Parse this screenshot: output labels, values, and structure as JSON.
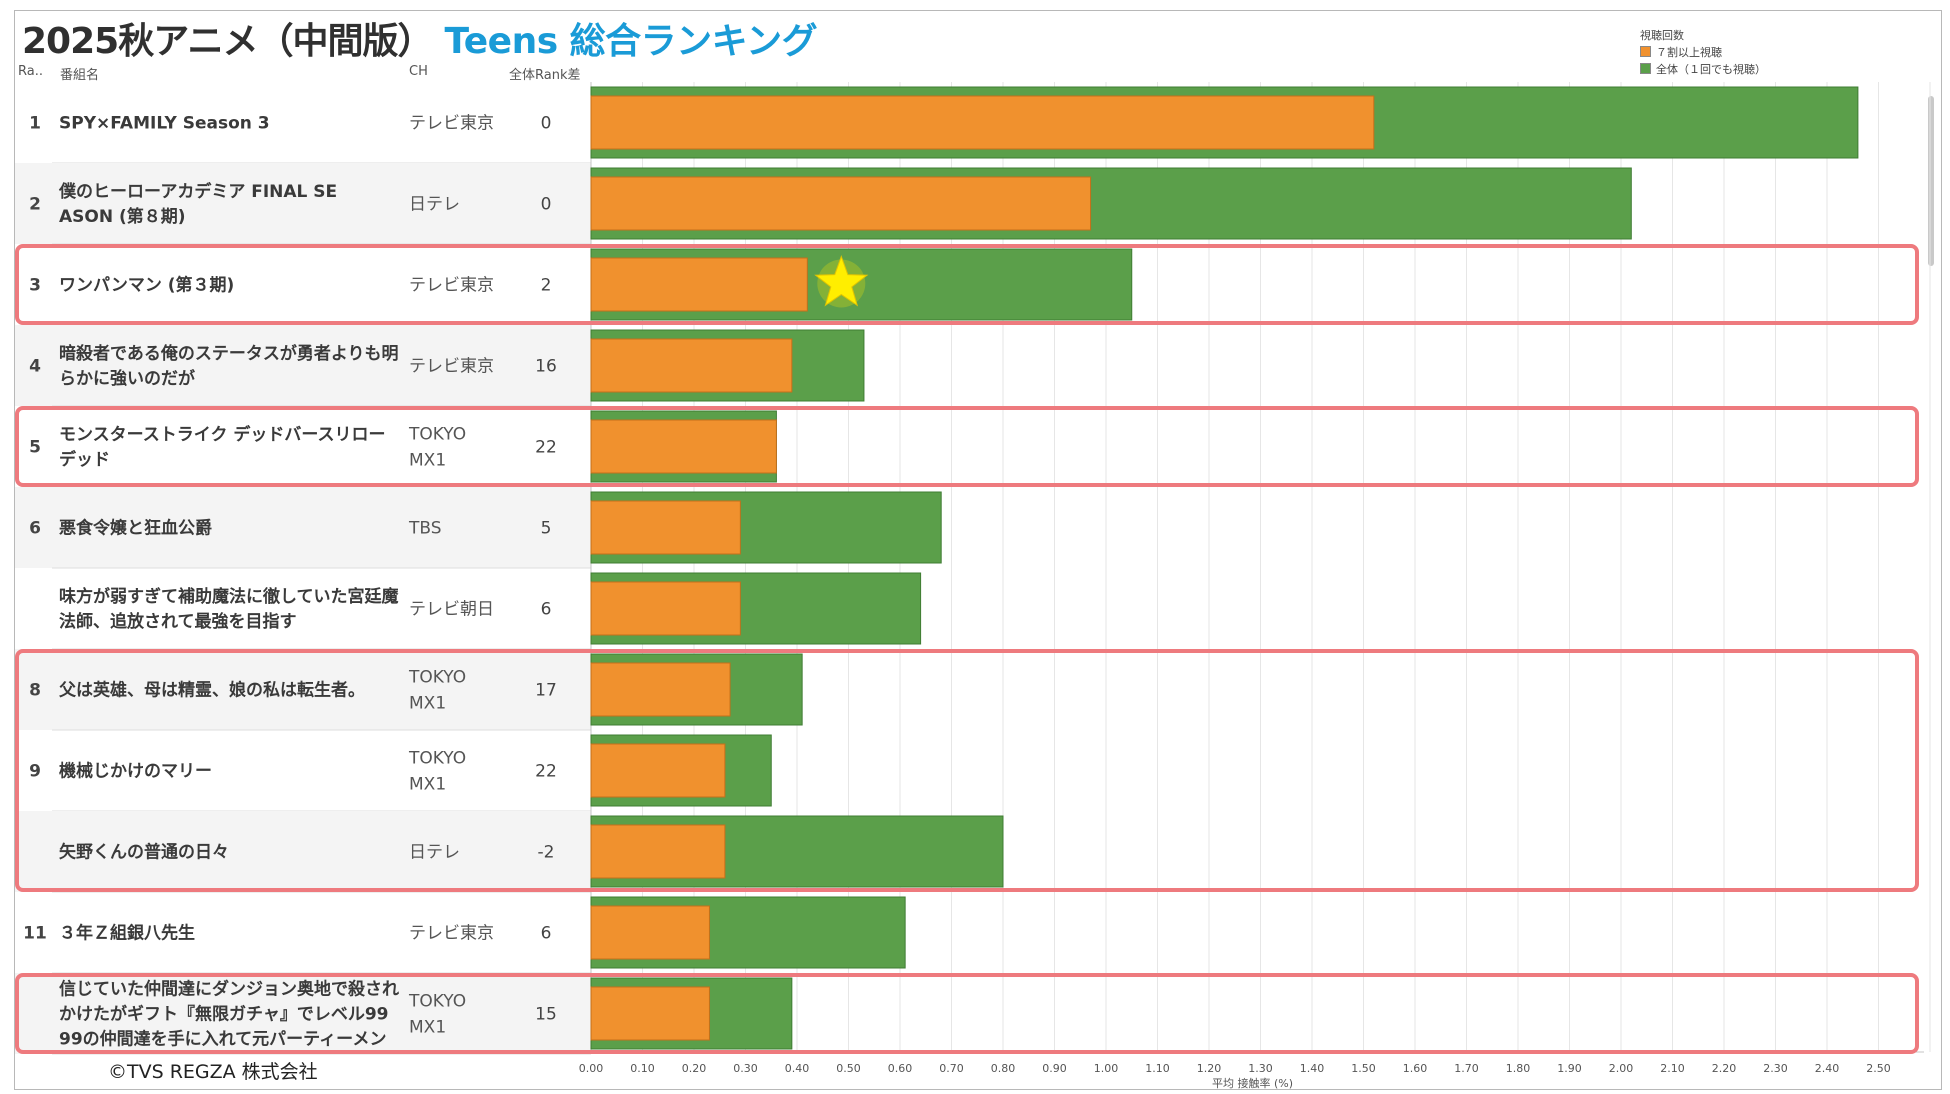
{
  "title": "2025秋アニメ（中間版）",
  "subtitle": "Teens 総合ランキング",
  "headers": {
    "rank": "Ra..",
    "name": "番組名",
    "ch": "CH",
    "diff": "全体Rank差"
  },
  "legend": {
    "title": "視聴回数",
    "items": [
      {
        "label": "７割以上視聴",
        "color": "#f0912e"
      },
      {
        "label": "全体（１回でも視聴）",
        "color": "#5b9f4a"
      }
    ]
  },
  "copyright": "©TVS REGZA 株式会社",
  "colors": {
    "green": "#5b9f4a",
    "orange": "#f0912e",
    "highlight": "#ee7a7e",
    "star": "#ffee00"
  },
  "chart_data": {
    "type": "bar",
    "orientation": "horizontal",
    "title": "2025秋アニメ（中間版） Teens 総合ランキング",
    "xlabel": "平均 接触率 (%)",
    "xlim": [
      0,
      2.55
    ],
    "xticks": [
      "0.00",
      "0.10",
      "0.20",
      "0.30",
      "0.40",
      "0.50",
      "0.60",
      "0.70",
      "0.80",
      "0.90",
      "1.00",
      "1.10",
      "1.20",
      "1.30",
      "1.40",
      "1.50",
      "1.60",
      "1.70",
      "1.80",
      "1.90",
      "2.00",
      "2.10",
      "2.20",
      "2.30",
      "2.40",
      "2.50"
    ],
    "rows": [
      {
        "rank": "1",
        "name": [
          "SPY×FAMILY Season 3"
        ],
        "ch": [
          "テレビ東京"
        ],
        "diff": "0",
        "total": 2.46,
        "seventy": 1.52,
        "highlight": false,
        "star": false
      },
      {
        "rank": "2",
        "name": [
          "僕のヒーローアカデミア FINAL SE",
          "ASON (第８期)"
        ],
        "ch": [
          "日テレ"
        ],
        "diff": "0",
        "total": 2.02,
        "seventy": 0.97,
        "highlight": false,
        "star": false
      },
      {
        "rank": "3",
        "name": [
          "ワンパンマン (第３期)"
        ],
        "ch": [
          "テレビ東京"
        ],
        "diff": "2",
        "total": 1.05,
        "seventy": 0.42,
        "highlight": true,
        "star": true
      },
      {
        "rank": "4",
        "name": [
          "暗殺者である俺のステータスが勇者よりも明",
          "らかに強いのだが"
        ],
        "ch": [
          "テレビ東京"
        ],
        "diff": "16",
        "total": 0.53,
        "seventy": 0.39,
        "highlight": false,
        "star": false
      },
      {
        "rank": "5",
        "name": [
          "モンスターストライク デッドバースリロー",
          "デッド"
        ],
        "ch": [
          "TOKYO",
          "MX1"
        ],
        "diff": "22",
        "total": 0.36,
        "seventy": 0.36,
        "highlight": true,
        "star": false
      },
      {
        "rank": "6",
        "name": [
          "悪食令嬢と狂血公爵"
        ],
        "ch": [
          "TBS"
        ],
        "diff": "5",
        "total": 0.68,
        "seventy": 0.29,
        "highlight": false,
        "star": false
      },
      {
        "rank": "",
        "name": [
          "味方が弱すぎて補助魔法に徹していた宮廷魔",
          "法師、追放されて最強を目指す"
        ],
        "ch": [
          "テレビ朝日"
        ],
        "diff": "6",
        "total": 0.64,
        "seventy": 0.29,
        "highlight": false,
        "star": false
      },
      {
        "rank": "8",
        "name": [
          "父は英雄、母は精霊、娘の私は転生者。"
        ],
        "ch": [
          "TOKYO",
          "MX1"
        ],
        "diff": "17",
        "total": 0.41,
        "seventy": 0.27,
        "highlight": true,
        "star": false
      },
      {
        "rank": "9",
        "name": [
          "機械じかけのマリー"
        ],
        "ch": [
          "TOKYO",
          "MX1"
        ],
        "diff": "22",
        "total": 0.35,
        "seventy": 0.26,
        "highlight": true,
        "star": false
      },
      {
        "rank": "",
        "name": [
          "矢野くんの普通の日々"
        ],
        "ch": [
          "日テレ"
        ],
        "diff": "-2",
        "total": 0.8,
        "seventy": 0.26,
        "highlight": true,
        "star": false
      },
      {
        "rank": "11",
        "name": [
          "３年Ｚ組銀八先生"
        ],
        "ch": [
          "テレビ東京"
        ],
        "diff": "6",
        "total": 0.61,
        "seventy": 0.23,
        "highlight": false,
        "star": false
      },
      {
        "rank": "",
        "name": [
          "信じていた仲間達にダンジョン奥地で殺され",
          "かけたがギフト『無限ガチャ』でレベル99",
          "99の仲間達を手に入れて元パーティーメン"
        ],
        "ch": [
          "TOKYO",
          "MX1"
        ],
        "diff": "15",
        "total": 0.39,
        "seventy": 0.23,
        "highlight": true,
        "star": false
      }
    ]
  }
}
